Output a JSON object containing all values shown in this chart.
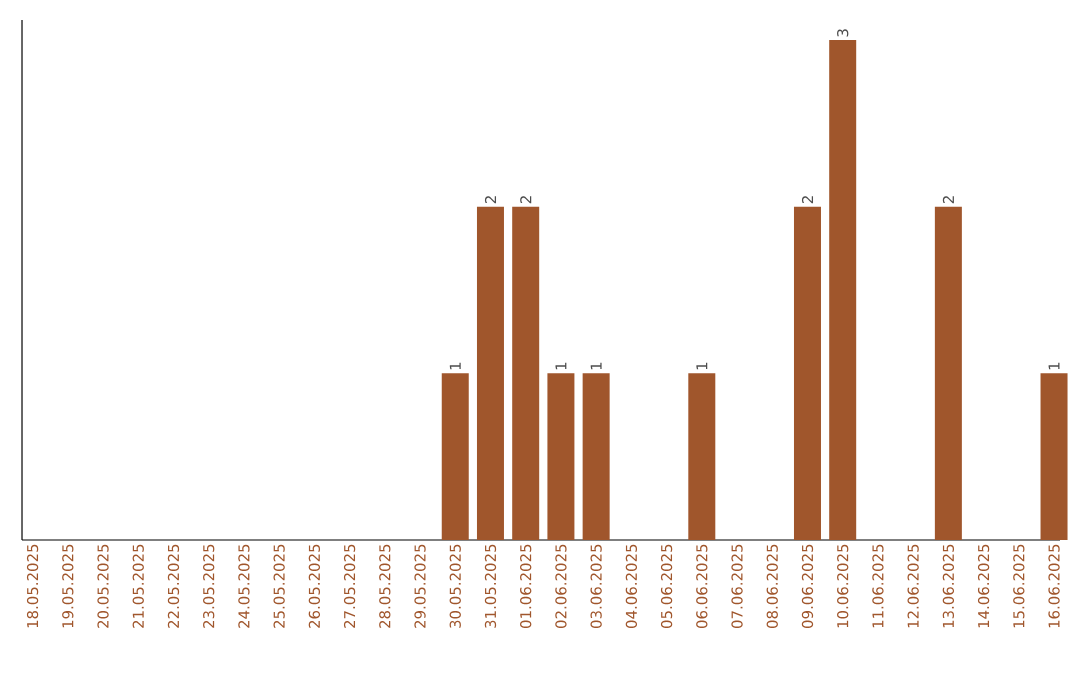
{
  "chart_data": {
    "type": "bar",
    "categories": [
      "18.05.2025",
      "19.05.2025",
      "20.05.2025",
      "21.05.2025",
      "22.05.2025",
      "23.05.2025",
      "24.05.2025",
      "25.05.2025",
      "26.05.2025",
      "27.05.2025",
      "28.05.2025",
      "29.05.2025",
      "30.05.2025",
      "31.05.2025",
      "01.06.2025",
      "02.06.2025",
      "03.06.2025",
      "04.06.2025",
      "05.06.2025",
      "06.06.2025",
      "07.06.2025",
      "08.06.2025",
      "09.06.2025",
      "10.06.2025",
      "11.06.2025",
      "12.06.2025",
      "13.06.2025",
      "14.06.2025",
      "15.06.2025",
      "16.06.2025"
    ],
    "values": [
      null,
      null,
      null,
      null,
      null,
      null,
      null,
      null,
      null,
      null,
      null,
      null,
      1,
      2,
      2,
      1,
      1,
      null,
      null,
      1,
      null,
      null,
      2,
      3,
      null,
      null,
      2,
      null,
      null,
      1
    ],
    "data_labels": true,
    "color": "#a0562c"
  }
}
